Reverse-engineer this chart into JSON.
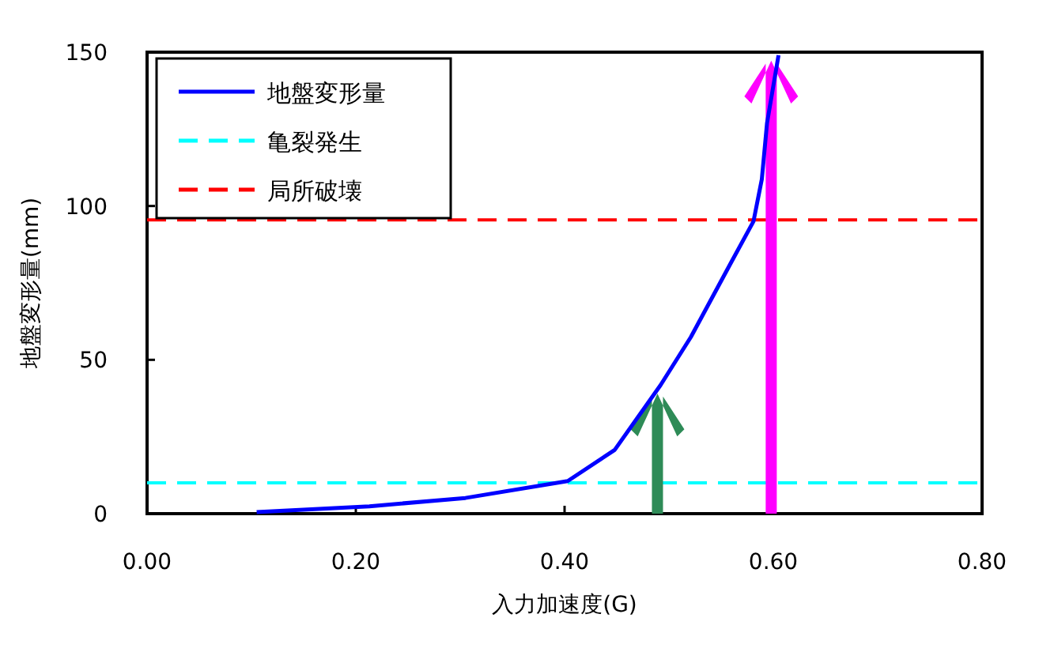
{
  "chart_data": {
    "type": "line",
    "xlabel": "入力加速度(G)",
    "ylabel": "地盤変形量(mm)",
    "xlim": [
      0,
      0.8
    ],
    "ylim": [
      0,
      150
    ],
    "xticks": [
      {
        "value": 0,
        "label": "0.00"
      },
      {
        "value": 0.2,
        "label": "0.20"
      },
      {
        "value": 0.4,
        "label": "0.40"
      },
      {
        "value": 0.6,
        "label": "0.60"
      },
      {
        "value": 0.8,
        "label": "0.80"
      }
    ],
    "yticks": [
      0,
      50,
      100,
      150
    ],
    "series": [
      {
        "name": "地盤変形量",
        "color": "#0000ff",
        "x": [
          0.105,
          0.213,
          0.305,
          0.403,
          0.448,
          0.492,
          0.521,
          0.559,
          0.581,
          0.589,
          0.594,
          0.605
        ],
        "values": [
          0.5,
          2.4,
          5.1,
          10.6,
          20.7,
          41.8,
          57.4,
          81.3,
          95,
          108.7,
          127,
          149
        ]
      }
    ],
    "ref_lines": [
      {
        "axis": "y",
        "value": 10,
        "label": "亀裂発生",
        "color": "#00ffff",
        "line_style": "dashed"
      },
      {
        "axis": "y",
        "value": 95.5,
        "label": "局所破壊",
        "color": "#ff0000",
        "line_style": "dashed"
      }
    ],
    "legend": "top left",
    "grid": false,
    "marker": "none",
    "line_style": "solid"
  }
}
